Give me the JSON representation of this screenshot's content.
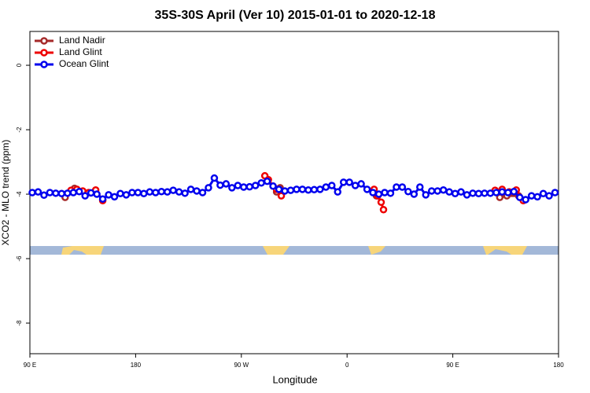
{
  "chart_data": {
    "type": "line",
    "title": "35S-30S April (Ver 10)   2015-01-01 to 2020-12-18",
    "x_label": "Longitude",
    "y_label": "XCO2 - MLO trend (ppm)",
    "xlim": [
      90,
      540
    ],
    "ylim": [
      -8.95,
      1.05
    ],
    "xticks": [
      {
        "value": 90,
        "label": "90 E"
      },
      {
        "value": 180,
        "label": "180"
      },
      {
        "value": 270,
        "label": "90 W"
      },
      {
        "value": 360,
        "label": "0"
      },
      {
        "value": 450,
        "label": "90 E"
      },
      {
        "value": 540,
        "label": "180"
      }
    ],
    "yticks": [
      0,
      -2,
      -4,
      -6,
      -8
    ],
    "legend": "top-left",
    "series": [
      {
        "name": "Land Nadir",
        "color": "#a52a2a",
        "x": [
          120,
          128,
          null,
          300,
          303,
          null,
          385,
          null,
          490,
          496,
          506
        ],
        "values": [
          -4.1,
          -3.82,
          null,
          -3.93,
          -3.8,
          null,
          -4.05,
          null,
          -4.1,
          -4.05,
          -4.05
        ]
      },
      {
        "name": "Land Glint",
        "color": "#ee0000",
        "x": [
          125,
          130,
          135,
          140,
          146,
          152,
          null,
          290,
          293,
          297,
          300,
          304,
          null,
          383,
          386,
          389,
          391,
          null,
          486,
          492,
          498,
          504,
          510
        ],
        "values": [
          -3.88,
          -3.85,
          -3.9,
          -3.95,
          -3.87,
          -4.2,
          null,
          -3.43,
          -3.55,
          -3.75,
          -3.85,
          -4.05,
          null,
          -3.85,
          -4.05,
          -4.25,
          -4.48,
          null,
          -3.88,
          -3.85,
          -3.93,
          -3.87,
          -4.2
        ]
      },
      {
        "name": "Ocean Glint",
        "color": "#0000ee",
        "x": [
          92,
          97,
          102,
          107,
          112,
          117,
          122,
          127,
          132,
          137,
          142,
          147,
          152,
          157,
          162,
          167,
          172,
          177,
          182,
          187,
          192,
          197,
          202,
          207,
          212,
          217,
          222,
          227,
          232,
          237,
          242,
          247,
          252,
          257,
          262,
          267,
          272,
          277,
          282,
          287,
          292,
          297,
          302,
          307,
          312,
          317,
          322,
          327,
          332,
          337,
          342,
          347,
          352,
          357,
          362,
          367,
          372,
          377,
          382,
          387,
          392,
          397,
          402,
          407,
          412,
          417,
          422,
          427,
          432,
          437,
          442,
          447,
          452,
          457,
          462,
          467,
          472,
          477,
          482,
          487,
          492,
          497,
          502,
          507,
          512,
          517,
          522,
          527,
          532,
          537
        ],
        "values": [
          -3.95,
          -3.93,
          -4.03,
          -3.95,
          -3.97,
          -3.98,
          -3.97,
          -3.95,
          -3.92,
          -4.05,
          -3.96,
          -4.0,
          -4.15,
          -4.02,
          -4.08,
          -3.98,
          -4.02,
          -3.95,
          -3.95,
          -3.98,
          -3.93,
          -3.95,
          -3.92,
          -3.93,
          -3.88,
          -3.93,
          -3.97,
          -3.85,
          -3.9,
          -3.95,
          -3.8,
          -3.5,
          -3.72,
          -3.68,
          -3.8,
          -3.73,
          -3.78,
          -3.77,
          -3.73,
          -3.65,
          -3.6,
          -3.75,
          -3.85,
          -3.9,
          -3.88,
          -3.85,
          -3.85,
          -3.87,
          -3.86,
          -3.85,
          -3.78,
          -3.73,
          -3.93,
          -3.63,
          -3.63,
          -3.73,
          -3.68,
          -3.85,
          -3.95,
          -4.0,
          -3.95,
          -3.97,
          -3.78,
          -3.78,
          -3.92,
          -4.0,
          -3.78,
          -4.02,
          -3.9,
          -3.9,
          -3.87,
          -3.93,
          -3.98,
          -3.93,
          -4.02,
          -3.97,
          -3.98,
          -3.97,
          -3.97,
          -3.95,
          -3.93,
          -3.95,
          -3.92,
          -4.1,
          -4.17,
          -4.05,
          -4.08,
          -3.98,
          -4.05,
          -3.95
        ]
      }
    ]
  }
}
